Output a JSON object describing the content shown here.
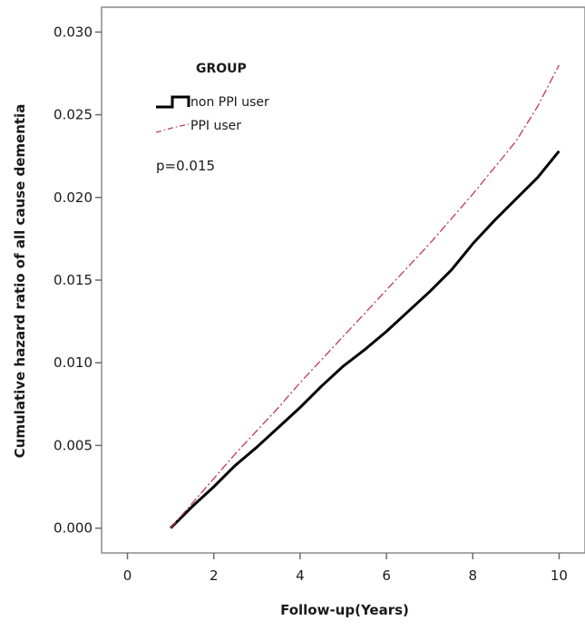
{
  "chart_data": {
    "type": "line",
    "xlabel": "Follow-up(Years)",
    "ylabel": "Cumulative hazard ratio of all cause dementia",
    "xlim": [
      -0.6,
      10.6
    ],
    "ylim": [
      -0.0015,
      0.0315
    ],
    "x_ticks": [
      0,
      2,
      4,
      6,
      8,
      10
    ],
    "y_ticks": [
      0.0,
      0.005,
      0.01,
      0.015,
      0.02,
      0.025,
      0.03
    ],
    "x_tick_labels": [
      "0",
      "2",
      "4",
      "6",
      "8",
      "10"
    ],
    "y_tick_labels": [
      "0.000",
      "0.005",
      "0.010",
      "0.015",
      "0.020",
      "0.025",
      "0.030"
    ],
    "grid": false,
    "legend": {
      "title": "GROUP",
      "placement": "top-left",
      "entries": [
        "non PPI user",
        "PPI user"
      ]
    },
    "annotation": "p=0.015",
    "series": [
      {
        "name": "non PPI user",
        "color": "#000000",
        "style": "solid",
        "x": [
          1.0,
          1.5,
          2.0,
          2.5,
          3.0,
          3.5,
          4.0,
          4.5,
          5.0,
          5.5,
          6.0,
          6.5,
          7.0,
          7.5,
          8.0,
          8.5,
          9.0,
          9.5,
          10.0
        ],
        "y": [
          0.0,
          0.0013,
          0.0025,
          0.0038,
          0.0049,
          0.0061,
          0.0073,
          0.0086,
          0.0098,
          0.0108,
          0.0119,
          0.0131,
          0.0143,
          0.0156,
          0.0172,
          0.0186,
          0.0199,
          0.0212,
          0.0228
        ]
      },
      {
        "name": "PPI user",
        "color": "#c0394b",
        "style": "dashdot",
        "x": [
          1.0,
          1.5,
          2.0,
          2.5,
          3.0,
          3.5,
          4.0,
          4.5,
          5.0,
          5.5,
          6.0,
          6.5,
          7.0,
          7.5,
          8.0,
          8.5,
          9.0,
          9.5,
          10.0
        ],
        "y": [
          0.0,
          0.0015,
          0.003,
          0.0045,
          0.0059,
          0.0073,
          0.0088,
          0.0102,
          0.0116,
          0.013,
          0.0144,
          0.0158,
          0.0172,
          0.0187,
          0.0202,
          0.0218,
          0.0234,
          0.0255,
          0.028
        ]
      }
    ]
  }
}
